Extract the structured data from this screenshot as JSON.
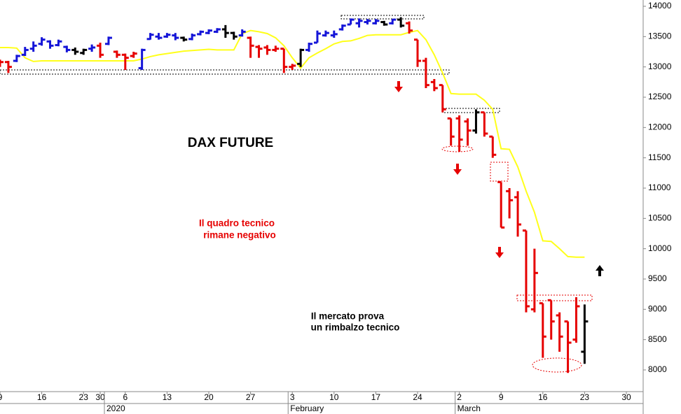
{
  "chart_data": {
    "type": "ohlc",
    "title": "DAX FUTURE",
    "annotations": [
      "Il quadro tecnico",
      "rimane negativo",
      "Il mercato prova",
      "un rimbalzo tecnico"
    ],
    "categories": [
      "9",
      null,
      null,
      null,
      null,
      "16",
      null,
      null,
      null,
      null,
      "23",
      null,
      "30",
      null,
      null,
      "6",
      null,
      null,
      null,
      null,
      "13",
      null,
      null,
      null,
      null,
      "20",
      null,
      null,
      null,
      null,
      "27",
      null,
      null,
      null,
      null,
      "3",
      null,
      null,
      null,
      null,
      "10",
      null,
      null,
      null,
      null,
      "17",
      null,
      null,
      null,
      null,
      "24",
      null,
      null,
      null,
      null,
      "2",
      null,
      null,
      null,
      null,
      "9",
      null,
      null,
      null,
      null,
      "16",
      null,
      null,
      null,
      null,
      "23",
      null,
      null,
      null,
      null,
      "30",
      null
    ],
    "months": [
      {
        "label": "2020",
        "start": 13
      },
      {
        "label": "February",
        "start": 35
      },
      {
        "label": "March",
        "start": 55
      }
    ],
    "open": [
      13100,
      13080,
      13100,
      13200,
      13300,
      13380,
      13420,
      13360,
      13330,
      13280,
      13230,
      13300,
      13350,
      13380,
      13250,
      13200,
      13180,
      12980,
      13460,
      13500,
      13500,
      13520,
      13480,
      13460,
      13540,
      13560,
      13580,
      13620,
      13560,
      13520,
      13480,
      13330,
      13320,
      13280,
      13300,
      13000,
      13050,
      13280,
      13400,
      13520,
      13520,
      13620,
      13700,
      13720,
      13740,
      13720,
      13740,
      13720,
      13780,
      13720,
      13450,
      13100,
      12750,
      12700,
      12150,
      12150,
      12100,
      11950,
      12250,
      11850,
      11100,
      10950,
      10850,
      10300,
      9000,
      9100,
      9150,
      8900,
      8800,
      8500,
      8300,
      null,
      null,
      null,
      null,
      null,
      null
    ],
    "high": [
      13120,
      13100,
      13200,
      13330,
      13420,
      13490,
      13440,
      13450,
      13350,
      13320,
      13300,
      13370,
      13400,
      13500,
      13270,
      13220,
      13250,
      13300,
      13560,
      13560,
      13560,
      13560,
      13500,
      13550,
      13600,
      13620,
      13640,
      13690,
      13580,
      13620,
      13500,
      13360,
      13360,
      13350,
      13300,
      13050,
      13300,
      13400,
      13600,
      13600,
      13600,
      13700,
      13800,
      13800,
      13790,
      13790,
      13760,
      13790,
      13820,
      13750,
      13450,
      13150,
      12800,
      12700,
      12150,
      12200,
      12150,
      12300,
      12250,
      11850,
      11100,
      11000,
      10950,
      10300,
      10000,
      9100,
      9150,
      8950,
      8800,
      9200,
      9080,
      null,
      null,
      null,
      null,
      null,
      null
    ],
    "low": [
      13000,
      12900,
      13080,
      13180,
      13250,
      13350,
      13300,
      13340,
      13240,
      13200,
      13200,
      13250,
      13150,
      13360,
      13150,
      12950,
      13150,
      12950,
      13450,
      13450,
      13480,
      13440,
      13420,
      13440,
      13520,
      13540,
      13560,
      13480,
      13450,
      13500,
      13150,
      13150,
      13200,
      13250,
      12900,
      12950,
      13000,
      13250,
      13400,
      13500,
      13480,
      13600,
      13700,
      13650,
      13700,
      13700,
      13680,
      13700,
      13650,
      13550,
      13000,
      12650,
      12600,
      12250,
      11700,
      11600,
      11700,
      11900,
      11850,
      11500,
      10350,
      10500,
      10200,
      8950,
      8950,
      8200,
      8500,
      8300,
      7950,
      8450,
      8100,
      null,
      null,
      null,
      null,
      null,
      null
    ],
    "close": [
      13080,
      13000,
      13180,
      13280,
      13350,
      13450,
      13350,
      13420,
      13280,
      13250,
      13280,
      13320,
      13200,
      13480,
      13200,
      13150,
      13220,
      13280,
      13530,
      13480,
      13530,
      13480,
      13450,
      13520,
      13580,
      13600,
      13620,
      13560,
      13500,
      13580,
      13350,
      13300,
      13280,
      13300,
      13000,
      13020,
      13280,
      13380,
      13550,
      13560,
      13540,
      13680,
      13780,
      13760,
      13760,
      13760,
      13700,
      13780,
      13680,
      13600,
      13100,
      12700,
      12650,
      12300,
      11850,
      11800,
      11950,
      12250,
      11900,
      11550,
      10350,
      10800,
      10400,
      9050,
      9600,
      8550,
      8800,
      8550,
      8450,
      9050,
      8800,
      null,
      null,
      null,
      null,
      null,
      null
    ],
    "bar_colors": [
      "#e60000",
      "#e60000",
      "#1515d8",
      "#1515d8",
      "#1515d8",
      "#1515d8",
      "#1515d8",
      "#1515d8",
      "#1515d8",
      "#000000",
      "#000000",
      "#1515d8",
      "#e60000",
      "#1515d8",
      "#e60000",
      "#e60000",
      "#e60000",
      "#1515d8",
      "#1515d8",
      "#1515d8",
      "#1515d8",
      "#1515d8",
      "#000000",
      "#1515d8",
      "#1515d8",
      "#1515d8",
      "#1515d8",
      "#000000",
      "#000000",
      "#1515d8",
      "#e60000",
      "#e60000",
      "#e60000",
      "#e60000",
      "#e60000",
      "#e60000",
      "#000000",
      "#1515d8",
      "#1515d8",
      "#1515d8",
      "#1515d8",
      "#1515d8",
      "#1515d8",
      "#1515d8",
      "#1515d8",
      "#1515d8",
      "#000000",
      "#1515d8",
      "#000000",
      "#e60000",
      "#e60000",
      "#e60000",
      "#e60000",
      "#e60000",
      "#e60000",
      "#e60000",
      "#e60000",
      "#000000",
      "#e60000",
      "#e60000",
      "#e60000",
      "#e60000",
      "#e60000",
      "#e60000",
      "#e60000",
      "#e60000",
      "#e60000",
      "#e60000",
      "#e60000",
      "#e60000",
      "#000000",
      null,
      null,
      null,
      null,
      null,
      null
    ],
    "line": {
      "color": "#ffff1a",
      "values": [
        13320,
        13320,
        13310,
        13150,
        13090,
        13100,
        13100,
        13100,
        13100,
        13100,
        13100,
        13100,
        13100,
        13100,
        13100,
        13100,
        13100,
        13130,
        13170,
        13200,
        13220,
        13240,
        13260,
        13270,
        13280,
        13290,
        13280,
        13280,
        13280,
        13550,
        13600,
        13580,
        13550,
        13480,
        13350,
        13150,
        12980,
        13150,
        13230,
        13300,
        13380,
        13420,
        13430,
        13470,
        13520,
        13530,
        13530,
        13530,
        13530,
        13570,
        13600,
        13450,
        13200,
        12900,
        12560,
        12550,
        12550,
        12550,
        12450,
        12300,
        11650,
        11640,
        11350,
        10950,
        10600,
        10130,
        10120,
        10000,
        9870,
        9860,
        9860,
        null,
        null,
        null,
        null,
        null,
        null
      ]
    },
    "ylim": [
      7642,
      14104
    ],
    "yticks": [
      8000,
      8500,
      9000,
      9500,
      10000,
      10500,
      11000,
      11500,
      12000,
      12500,
      13000,
      13500,
      14000
    ],
    "grid": false
  }
}
